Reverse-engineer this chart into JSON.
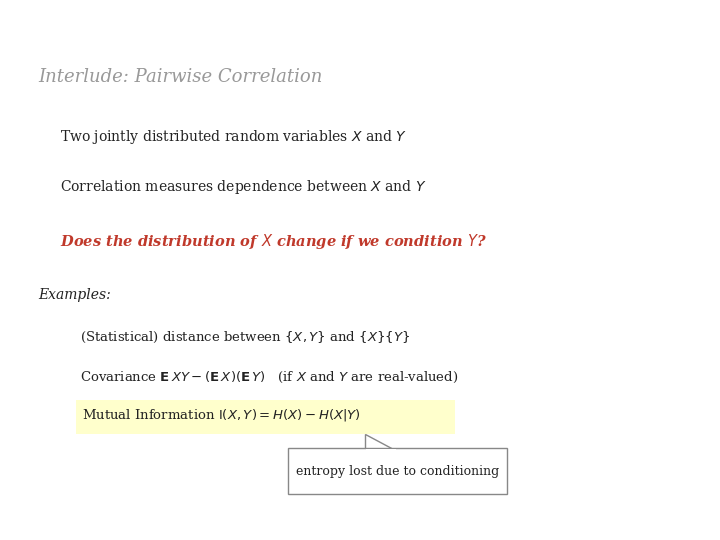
{
  "title": "Interlude: Pairwise Correlation",
  "title_color": "#999999",
  "title_fontsize": 13,
  "bg_color": "#ffffff",
  "bullet1": "Two jointly distributed random variables $X$ and $Y$",
  "bullet2": "Correlation measures dependence between $X$ and $Y$",
  "question": "Does the distribution of $X$ change if we condition $Y$?",
  "question_color": "#c0392b",
  "examples_label": "Examples:",
  "sub1": "(Statistical) distance between $\\{X, Y\\}$ and $\\{X\\}\\{Y\\}$",
  "sub2": "Covariance $\\mathbf{E}\\,XY - (\\mathbf{E}\\,X)(\\mathbf{E}\\,Y)$   (if $X$ and $Y$ are real-valued)",
  "sub3": "Mutual Information $\\mathrm{I}(X, Y) = H(X) - H(X|Y)$",
  "annotation": "entropy lost due to conditioning",
  "highlight_color": "#ffffcc",
  "box_color": "#888888",
  "text_color": "#222222",
  "text_fontsize": 10,
  "sub_fontsize": 9.5,
  "ann_fontsize": 9
}
